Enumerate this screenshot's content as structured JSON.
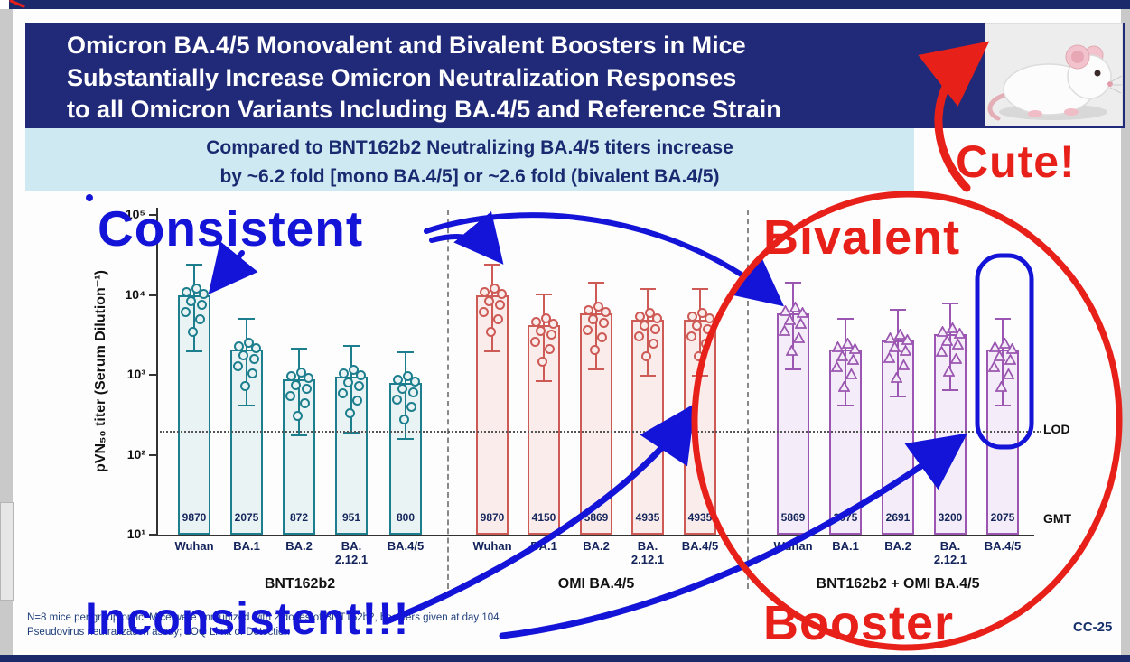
{
  "header": {
    "title_lines": [
      "Omicron BA.4/5 Monovalent and Bivalent Boosters in Mice",
      "Substantially Increase Omicron Neutralization Responses",
      "to all Omicron Variants Including BA.4/5 and Reference Strain"
    ]
  },
  "subtitle": {
    "line1": "Compared to BNT162b2 Neutralizing BA.4/5 titers increase",
    "line2": "by ~6.2 fold [mono BA.4/5] or ~2.6 fold (bivalent BA.4/5)"
  },
  "chart_data": {
    "type": "bar",
    "title": "",
    "ylabel": "pVN₅₀ titer (Serum Dilution⁻¹)",
    "y_scale": "log10",
    "ylim": [
      10,
      100000
    ],
    "y_tick_labels": [
      "10¹",
      "10²",
      "10³",
      "10⁴",
      "10⁵"
    ],
    "lod_value": 200,
    "lod_label": "LOD",
    "gmt_row_label": "GMT",
    "categories": [
      "Wuhan",
      "BA.1",
      "BA.2",
      "BA.\n2.12.1",
      "BA.4/5"
    ],
    "groups": [
      {
        "label": "BNT162b2",
        "color": "#1d7f8e",
        "fill": "#eaf3f4",
        "marker": "circle",
        "gmt": [
          9870,
          2075,
          872,
          951,
          800
        ]
      },
      {
        "label": "OMI BA.4/5",
        "color": "#cd5a55",
        "fill": "#fbecec",
        "marker": "circle",
        "gmt": [
          9870,
          4150,
          5869,
          4935,
          4935
        ]
      },
      {
        "label": "BNT162b2 + OMI BA.4/5",
        "color": "#9a56b0",
        "fill": "#f4ecf8",
        "marker": "triangle",
        "gmt": [
          5869,
          2075,
          2691,
          3200,
          2075
        ]
      }
    ]
  },
  "annotations": {
    "consistent": "Consistent",
    "bivalent": "Bivalent",
    "cute": "Cute!",
    "inconsistent": "Inconsistent!!!",
    "booster": "Booster",
    "blue": "#1414d8",
    "red": "#e8201a"
  },
  "footer": {
    "line1": "N=8 mice per group/omic; Mice were immunized with 2 doses of BNT162b2, boosters given at day 104",
    "line2": "Pseudovirus neutralization assay; LOQ Limit of Detection",
    "slide_code": "CC-25"
  }
}
